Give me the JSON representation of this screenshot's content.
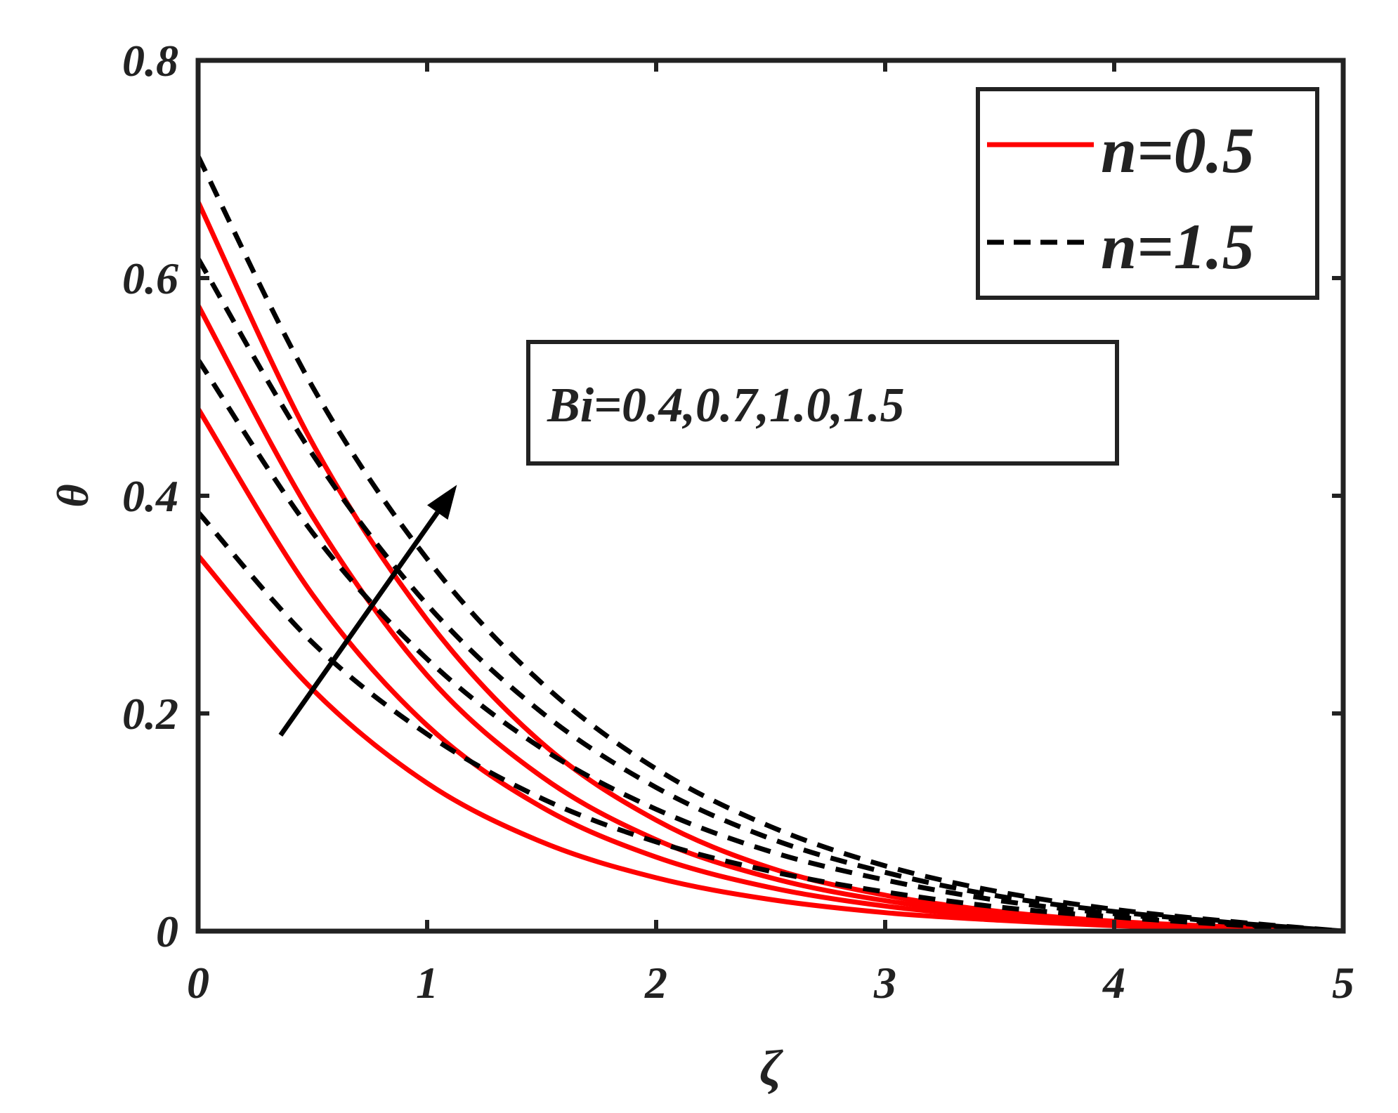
{
  "chart_data": {
    "type": "line",
    "xlabel": "ζ",
    "ylabel": "θ",
    "xlim": [
      0,
      5
    ],
    "ylim": [
      0,
      0.8
    ],
    "x_ticks": [
      "0",
      "1",
      "2",
      "3",
      "4",
      "5"
    ],
    "y_ticks": [
      "0",
      "0.2",
      "0.4",
      "0.6",
      "0.8"
    ],
    "grid": false,
    "legend_position": "top-right",
    "legend": [
      {
        "label": "n=0.5",
        "color": "#ff0000",
        "dash": "solid"
      },
      {
        "label": "n=1.5",
        "color": "#000000",
        "dash": "dashed"
      }
    ],
    "annotation": {
      "text": "Bi=0.4,0.7,1.0,1.5",
      "arrow_from": [
        0.36,
        0.18
      ],
      "arrow_to": [
        1.13,
        0.41
      ]
    },
    "x": [
      0,
      0.5,
      1,
      1.5,
      2,
      2.5,
      3,
      3.5,
      4,
      4.5,
      5
    ],
    "series": [
      {
        "group": "n=0.5",
        "Bi": 0.4,
        "color": "#ff0000",
        "dash": "solid",
        "values": [
          0.345,
          0.222,
          0.136,
          0.082,
          0.049,
          0.029,
          0.017,
          0.01,
          0.005,
          0.002,
          0
        ]
      },
      {
        "group": "n=0.5",
        "Bi": 0.7,
        "color": "#ff0000",
        "dash": "solid",
        "values": [
          0.48,
          0.309,
          0.189,
          0.114,
          0.068,
          0.04,
          0.023,
          0.013,
          0.007,
          0.003,
          0
        ]
      },
      {
        "group": "n=0.5",
        "Bi": 1.0,
        "color": "#ff0000",
        "dash": "solid",
        "values": [
          0.575,
          0.381,
          0.235,
          0.142,
          0.084,
          0.049,
          0.028,
          0.016,
          0.008,
          0.003,
          0
        ]
      },
      {
        "group": "n=0.5",
        "Bi": 1.5,
        "color": "#ff0000",
        "dash": "solid",
        "values": [
          0.67,
          0.448,
          0.286,
          0.173,
          0.102,
          0.058,
          0.033,
          0.018,
          0.009,
          0.004,
          0
        ]
      },
      {
        "group": "n=1.5",
        "Bi": 0.4,
        "color": "#000000",
        "dash": "dashed",
        "values": [
          0.385,
          0.265,
          0.181,
          0.122,
          0.082,
          0.055,
          0.036,
          0.022,
          0.013,
          0.006,
          0
        ]
      },
      {
        "group": "n=1.5",
        "Bi": 0.7,
        "color": "#000000",
        "dash": "dashed",
        "values": [
          0.525,
          0.366,
          0.25,
          0.168,
          0.112,
          0.073,
          0.047,
          0.028,
          0.016,
          0.007,
          0
        ]
      },
      {
        "group": "n=1.5",
        "Bi": 1.0,
        "color": "#000000",
        "dash": "dashed",
        "values": [
          0.618,
          0.438,
          0.3,
          0.201,
          0.132,
          0.085,
          0.054,
          0.032,
          0.018,
          0.008,
          0
        ]
      },
      {
        "group": "n=1.5",
        "Bi": 1.5,
        "color": "#000000",
        "dash": "dashed",
        "values": [
          0.712,
          0.5,
          0.342,
          0.228,
          0.149,
          0.096,
          0.06,
          0.036,
          0.02,
          0.009,
          0
        ]
      }
    ]
  }
}
